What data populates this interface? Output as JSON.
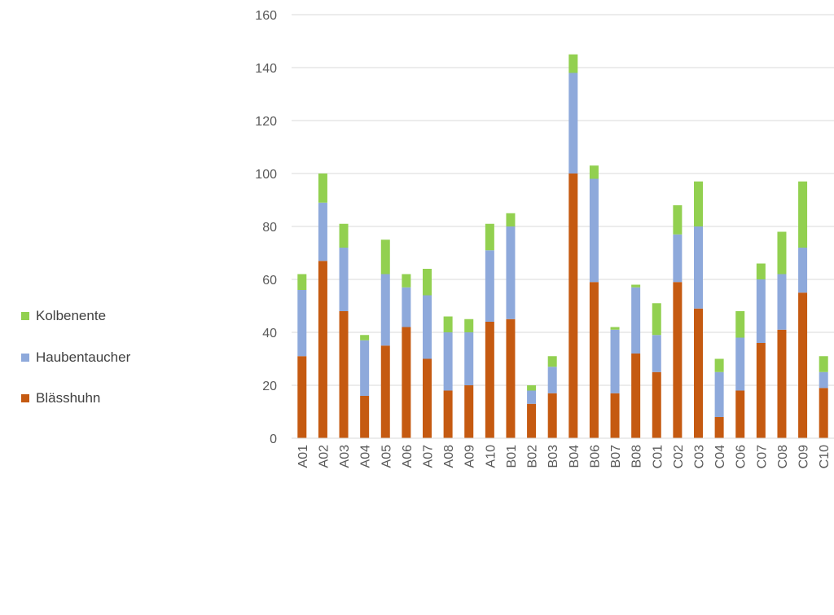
{
  "chart_data": {
    "type": "bar",
    "stacked": true,
    "categories": [
      "A01",
      "A02",
      "A03",
      "A04",
      "A05",
      "A06",
      "A07",
      "A08",
      "A09",
      "A10",
      "B01",
      "B02",
      "B03",
      "B04",
      "B06",
      "B07",
      "B08",
      "C01",
      "C02",
      "C03",
      "C04",
      "C06",
      "C07",
      "C08",
      "C09",
      "C10"
    ],
    "series": [
      {
        "name": "Blässhuhn",
        "color": "#C55A11",
        "values": [
          31,
          67,
          48,
          16,
          35,
          42,
          30,
          18,
          20,
          44,
          45,
          13,
          17,
          100,
          59,
          17,
          32,
          25,
          59,
          49,
          8,
          18,
          36,
          41,
          55,
          19
        ]
      },
      {
        "name": "Haubentaucher",
        "color": "#8EA9DB",
        "values": [
          25,
          22,
          24,
          21,
          27,
          15,
          24,
          22,
          20,
          27,
          35,
          5,
          10,
          38,
          39,
          24,
          25,
          14,
          18,
          31,
          17,
          20,
          24,
          21,
          17,
          6
        ]
      },
      {
        "name": "Kolbenente",
        "color": "#92D050",
        "values": [
          6,
          11,
          9,
          2,
          13,
          5,
          10,
          6,
          5,
          10,
          5,
          2,
          4,
          7,
          5,
          1,
          1,
          12,
          11,
          17,
          5,
          10,
          6,
          16,
          25,
          6
        ]
      }
    ],
    "ylim": [
      0,
      160
    ],
    "yticks": [
      "0",
      "20",
      "40",
      "60",
      "80",
      "100",
      "120",
      "140",
      "160"
    ],
    "grid": true,
    "legend_position": "left",
    "title": "",
    "xlabel": "",
    "ylabel": ""
  },
  "legend": {
    "items": [
      {
        "label": "Kolbenente",
        "color": "#92D050"
      },
      {
        "label": "Haubentaucher",
        "color": "#8EA9DB"
      },
      {
        "label": "Blässhuhn",
        "color": "#C55A11"
      }
    ]
  }
}
